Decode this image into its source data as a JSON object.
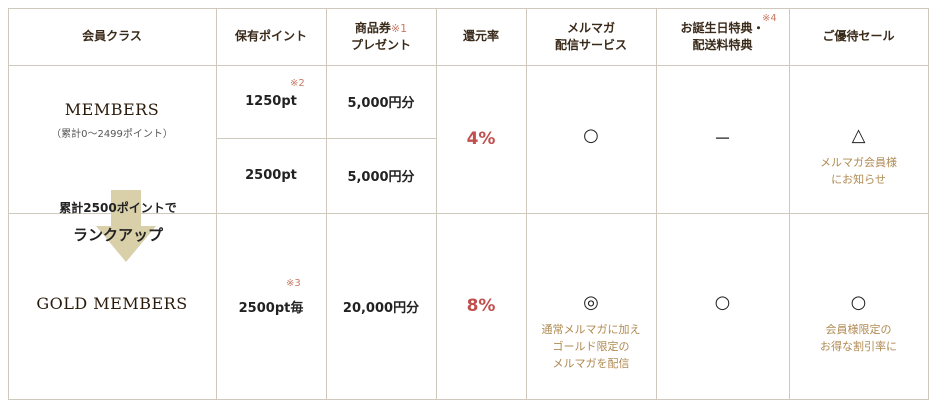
{
  "headers": {
    "member_class": "会員クラス",
    "points": "保有ポイント",
    "voucher_line1": "商品券",
    "voucher_note": "※1",
    "voucher_line2": "プレゼント",
    "return_rate": "還元率",
    "mail_line1": "メルマガ",
    "mail_line2": "配信サービス",
    "birthday_line1": "お誕生日特典・",
    "birthday_line2": "配送料特典",
    "birthday_note": "※4",
    "sale": "ご優待セール"
  },
  "members": {
    "name": "MEMBERS",
    "range": "（累計0～2499ポイント）",
    "row1_points": "1250pt",
    "row1_note": "※2",
    "row1_voucher": "5,000円分",
    "row2_points": "2500pt",
    "row2_voucher": "5,000円分",
    "rate": "4%",
    "mail": "○",
    "birthday": "－",
    "sale": "△",
    "sale_sub1": "メルマガ会員様",
    "sale_sub2": "にお知らせ"
  },
  "rankup": {
    "line1": "累計2500ポイントで",
    "line2": "ランクアップ"
  },
  "gold": {
    "name": "GOLD MEMBERS",
    "points": "2500pt毎",
    "points_note": "※3",
    "voucher": "20,000円分",
    "rate": "8%",
    "mail": "◎",
    "mail_sub1": "通常メルマガに加え",
    "mail_sub2": "ゴールド限定の",
    "mail_sub3": "メルマガを配信",
    "birthday": "○",
    "sale": "○",
    "sale_sub1": "会員様限定の",
    "sale_sub2": "お得な割引率に"
  }
}
